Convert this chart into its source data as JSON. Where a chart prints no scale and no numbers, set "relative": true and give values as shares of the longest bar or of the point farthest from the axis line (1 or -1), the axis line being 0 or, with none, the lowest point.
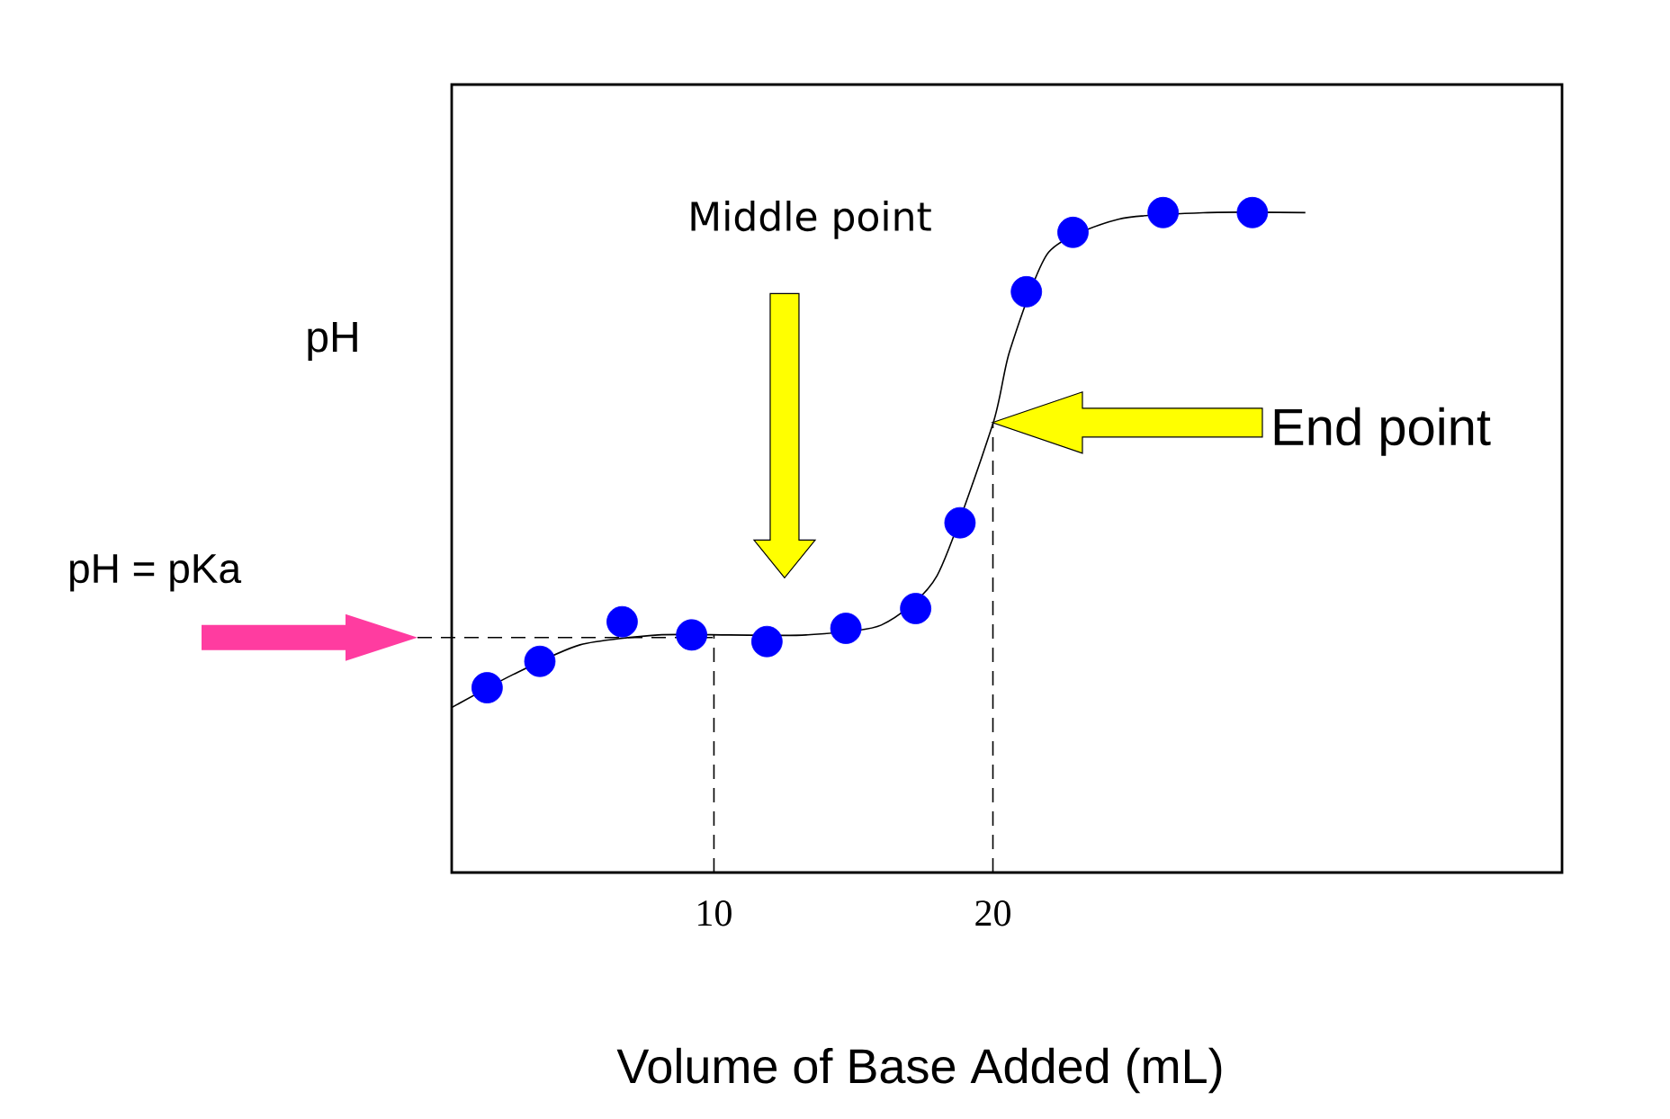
{
  "chart_data": {
    "type": "scatter",
    "relative": true,
    "xlabel": "Volume of Base Added (mL)",
    "ylabel": "pH",
    "xlim": [
      0.6,
      40.4
    ],
    "xticks": [
      10,
      20
    ],
    "series": [
      {
        "type": "line",
        "color": "#000000",
        "x": [
          0.6,
          2.8,
          5.2,
          8.0,
          10.55,
          13.3,
          16.0,
          18.0,
          20,
          20.6,
          22.0,
          24.5,
          27.7,
          31.2
        ],
        "values": [
          0.25,
          0.3,
          0.345,
          0.36,
          0.36,
          0.36,
          0.375,
          0.45,
          0.68,
          0.79,
          0.94,
          0.99,
          1.0,
          1.0
        ]
      },
      {
        "color": "#0000ff",
        "marker": "circle",
        "x": [
          1.87,
          3.76,
          6.71,
          9.2,
          11.9,
          14.73,
          17.23,
          18.82,
          21.2,
          22.87,
          26.1,
          29.3
        ],
        "values": [
          0.28,
          0.32,
          0.38,
          0.36,
          0.35,
          0.37,
          0.4,
          0.53,
          0.88,
          0.97,
          1.0,
          1.0
        ]
      }
    ],
    "ref_lines": [
      {
        "axis": "y",
        "value": 0.356,
        "label": "pH = pKa",
        "line_style": "dashed"
      },
      {
        "axis": "x",
        "value": 10,
        "line_style": "dashed"
      },
      {
        "axis": "x",
        "value": 20,
        "line_style": "dashed"
      }
    ],
    "annotations": [
      "Middle point",
      "End point"
    ]
  }
}
